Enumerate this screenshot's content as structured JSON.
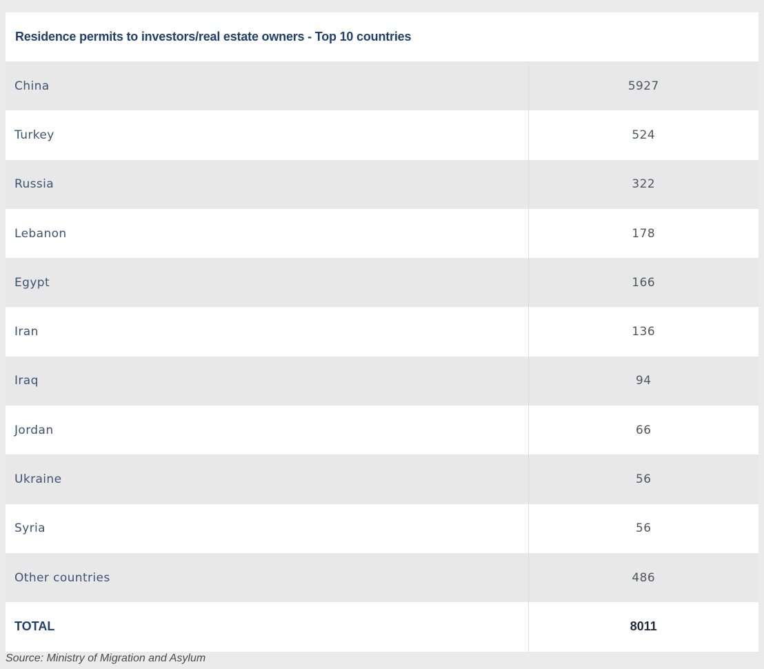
{
  "chart_data": {
    "type": "table",
    "title": "Residence permits to investors/real estate owners - Top 10 countries",
    "rows": [
      {
        "country": "China",
        "value": "5927"
      },
      {
        "country": "Turkey",
        "value": "524"
      },
      {
        "country": "Russia",
        "value": "322"
      },
      {
        "country": "Lebanon",
        "value": "178"
      },
      {
        "country": "Egypt",
        "value": "166"
      },
      {
        "country": "Iran",
        "value": "136"
      },
      {
        "country": "Iraq",
        "value": "94"
      },
      {
        "country": "Jordan",
        "value": "66"
      },
      {
        "country": "Ukraine",
        "value": "56"
      },
      {
        "country": "Syria",
        "value": "56"
      },
      {
        "country": "Other countries",
        "value": "486"
      }
    ],
    "total": {
      "label": "TOTAL",
      "value": "8011"
    }
  },
  "source": "Source: Ministry of Migration and Asylum",
  "colors": {
    "title": "#1f3f6e",
    "row_alt": "#e8e8e8",
    "row_plain": "#ffffff",
    "background": "#ebebeb"
  }
}
